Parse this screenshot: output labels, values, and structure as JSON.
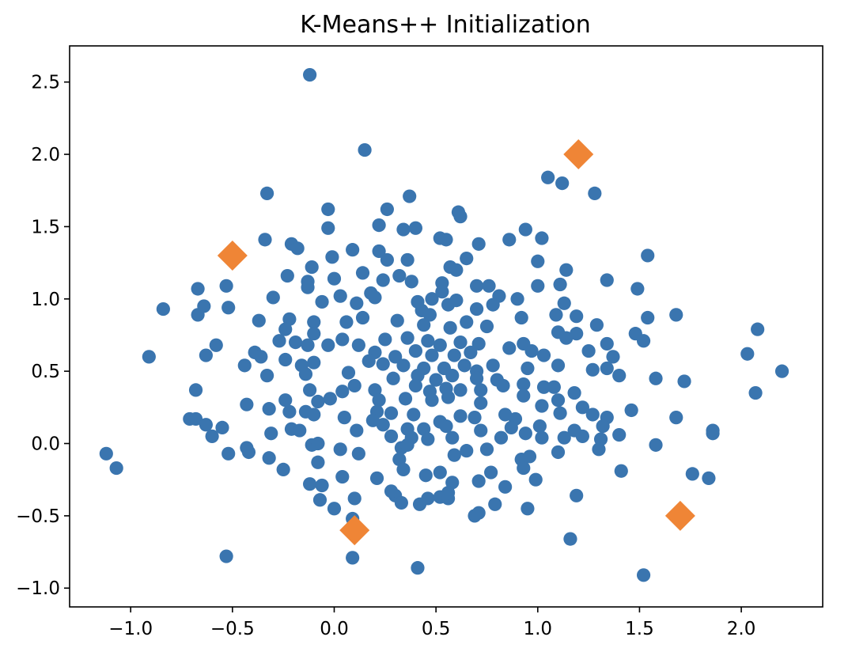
{
  "chart_data": {
    "type": "scatter",
    "title": "K-Means++ Initialization",
    "xlabel": "",
    "ylabel": "",
    "xlim": [
      -1.3,
      2.4
    ],
    "ylim": [
      -1.13,
      2.75
    ],
    "x_ticks": [
      -1.0,
      -0.5,
      0.0,
      0.5,
      1.0,
      1.5,
      2.0
    ],
    "x_tick_labels": [
      "−1.0",
      "−0.5",
      "0.0",
      "0.5",
      "1.0",
      "1.5",
      "2.0"
    ],
    "y_ticks": [
      -1.0,
      -0.5,
      0.0,
      0.5,
      1.0,
      1.5,
      2.0,
      2.5
    ],
    "y_tick_labels": [
      "−1.0",
      "−0.5",
      "0.0",
      "0.5",
      "1.0",
      "1.5",
      "2.0",
      "2.5"
    ],
    "grid": false,
    "colors": {
      "points": "#3a75af",
      "centroids": "#ef8536"
    },
    "series": [
      {
        "marker": "circle",
        "color": "#3a75af",
        "points": [
          [
            -0.12,
            2.55
          ],
          [
            0.15,
            2.03
          ],
          [
            -0.33,
            1.73
          ],
          [
            1.05,
            1.84
          ],
          [
            1.12,
            1.8
          ],
          [
            1.28,
            1.73
          ],
          [
            0.37,
            1.71
          ],
          [
            0.26,
            1.62
          ],
          [
            -0.03,
            1.62
          ],
          [
            0.61,
            1.6
          ],
          [
            0.62,
            1.57
          ],
          [
            0.22,
            1.51
          ],
          [
            0.4,
            1.49
          ],
          [
            0.34,
            1.48
          ],
          [
            -0.03,
            1.49
          ],
          [
            0.94,
            1.48
          ],
          [
            0.52,
            1.42
          ],
          [
            0.55,
            1.41
          ],
          [
            0.86,
            1.41
          ],
          [
            1.02,
            1.42
          ],
          [
            -0.34,
            1.41
          ],
          [
            -0.21,
            1.38
          ],
          [
            -0.18,
            1.35
          ],
          [
            0.71,
            1.38
          ],
          [
            1.54,
            1.3
          ],
          [
            -0.01,
            1.29
          ],
          [
            0.09,
            1.34
          ],
          [
            0.22,
            1.33
          ],
          [
            0.26,
            1.27
          ],
          [
            0.36,
            1.27
          ],
          [
            0.65,
            1.28
          ],
          [
            0.57,
            1.22
          ],
          [
            1.0,
            1.26
          ],
          [
            -0.11,
            1.22
          ],
          [
            0.6,
            1.2
          ],
          [
            1.14,
            1.2
          ],
          [
            0.14,
            1.18
          ],
          [
            0.32,
            1.16
          ],
          [
            -0.23,
            1.16
          ],
          [
            -0.13,
            1.12
          ],
          [
            0.53,
            1.11
          ],
          [
            -0.53,
            1.09
          ],
          [
            -0.67,
            1.07
          ],
          [
            -0.13,
            1.08
          ],
          [
            0.0,
            1.14
          ],
          [
            0.24,
            1.13
          ],
          [
            0.38,
            1.12
          ],
          [
            0.7,
            1.09
          ],
          [
            0.76,
            1.09
          ],
          [
            1.0,
            1.09
          ],
          [
            1.11,
            1.1
          ],
          [
            1.49,
            1.07
          ],
          [
            0.53,
            1.05
          ],
          [
            0.18,
            1.04
          ],
          [
            0.48,
            1.0
          ],
          [
            0.6,
            0.99
          ],
          [
            0.81,
            1.02
          ],
          [
            0.9,
            1.0
          ],
          [
            1.13,
            0.97
          ],
          [
            1.34,
            1.13
          ],
          [
            -0.3,
            1.01
          ],
          [
            -0.06,
            0.98
          ],
          [
            0.03,
            1.02
          ],
          [
            0.11,
            0.97
          ],
          [
            0.2,
            1.01
          ],
          [
            0.41,
            0.98
          ],
          [
            -0.52,
            0.94
          ],
          [
            -0.84,
            0.93
          ],
          [
            -0.64,
            0.95
          ],
          [
            -0.67,
            0.89
          ],
          [
            0.43,
            0.92
          ],
          [
            0.47,
            0.89
          ],
          [
            0.56,
            0.96
          ],
          [
            0.7,
            0.93
          ],
          [
            0.78,
            0.96
          ],
          [
            0.92,
            0.87
          ],
          [
            1.09,
            0.89
          ],
          [
            1.19,
            0.88
          ],
          [
            1.29,
            0.82
          ],
          [
            1.54,
            0.87
          ],
          [
            1.68,
            0.89
          ],
          [
            -0.37,
            0.85
          ],
          [
            -0.1,
            0.84
          ],
          [
            -0.22,
            0.86
          ],
          [
            0.06,
            0.84
          ],
          [
            0.14,
            0.87
          ],
          [
            0.31,
            0.85
          ],
          [
            0.44,
            0.82
          ],
          [
            0.57,
            0.8
          ],
          [
            0.65,
            0.84
          ],
          [
            0.75,
            0.81
          ],
          [
            1.1,
            0.77
          ],
          [
            1.19,
            0.76
          ],
          [
            1.14,
            0.73
          ],
          [
            1.48,
            0.76
          ],
          [
            1.52,
            0.71
          ],
          [
            2.08,
            0.79
          ],
          [
            -0.24,
            0.79
          ],
          [
            -0.1,
            0.76
          ],
          [
            0.04,
            0.72
          ],
          [
            0.12,
            0.68
          ],
          [
            0.25,
            0.72
          ],
          [
            0.36,
            0.73
          ],
          [
            0.46,
            0.71
          ],
          [
            0.52,
            0.68
          ],
          [
            0.62,
            0.7
          ],
          [
            0.71,
            0.69
          ],
          [
            0.86,
            0.66
          ],
          [
            0.93,
            0.69
          ],
          [
            1.34,
            0.69
          ],
          [
            -0.27,
            0.71
          ],
          [
            -0.19,
            0.7
          ],
          [
            -0.13,
            0.68
          ],
          [
            -0.03,
            0.68
          ],
          [
            0.2,
            0.63
          ],
          [
            0.3,
            0.6
          ],
          [
            0.4,
            0.64
          ],
          [
            0.48,
            0.61
          ],
          [
            0.59,
            0.61
          ],
          [
            0.67,
            0.63
          ],
          [
            0.97,
            0.64
          ],
          [
            1.03,
            0.61
          ],
          [
            1.25,
            0.64
          ],
          [
            1.37,
            0.6
          ],
          [
            2.03,
            0.62
          ],
          [
            -0.63,
            0.61
          ],
          [
            -0.58,
            0.68
          ],
          [
            -0.91,
            0.6
          ],
          [
            -0.39,
            0.63
          ],
          [
            -0.36,
            0.6
          ],
          [
            -0.44,
            0.54
          ],
          [
            -0.24,
            0.58
          ],
          [
            -0.16,
            0.54
          ],
          [
            -0.1,
            0.56
          ],
          [
            0.17,
            0.57
          ],
          [
            0.24,
            0.55
          ],
          [
            0.34,
            0.54
          ],
          [
            0.44,
            0.52
          ],
          [
            0.54,
            0.52
          ],
          [
            0.64,
            0.54
          ],
          [
            0.7,
            0.5
          ],
          [
            0.78,
            0.54
          ],
          [
            0.95,
            0.52
          ],
          [
            1.1,
            0.54
          ],
          [
            1.27,
            0.51
          ],
          [
            1.34,
            0.52
          ],
          [
            1.4,
            0.47
          ],
          [
            2.2,
            0.5
          ],
          [
            -0.33,
            0.47
          ],
          [
            -0.14,
            0.48
          ],
          [
            0.07,
            0.49
          ],
          [
            0.29,
            0.45
          ],
          [
            0.41,
            0.47
          ],
          [
            0.5,
            0.44
          ],
          [
            0.58,
            0.47
          ],
          [
            0.7,
            0.45
          ],
          [
            0.8,
            0.44
          ],
          [
            1.58,
            0.45
          ],
          [
            1.72,
            0.43
          ],
          [
            -0.68,
            0.37
          ],
          [
            -0.12,
            0.37
          ],
          [
            0.04,
            0.36
          ],
          [
            0.1,
            0.4
          ],
          [
            0.2,
            0.37
          ],
          [
            0.4,
            0.4
          ],
          [
            0.47,
            0.36
          ],
          [
            0.55,
            0.38
          ],
          [
            0.62,
            0.37
          ],
          [
            0.72,
            0.37
          ],
          [
            0.83,
            0.4
          ],
          [
            0.93,
            0.41
          ],
          [
            1.03,
            0.39
          ],
          [
            1.08,
            0.39
          ],
          [
            1.18,
            0.35
          ],
          [
            2.07,
            0.35
          ],
          [
            -0.02,
            0.31
          ],
          [
            -0.08,
            0.29
          ],
          [
            -0.24,
            0.3
          ],
          [
            0.22,
            0.3
          ],
          [
            0.35,
            0.31
          ],
          [
            0.48,
            0.3
          ],
          [
            0.56,
            0.32
          ],
          [
            0.72,
            0.28
          ],
          [
            0.93,
            0.33
          ],
          [
            1.1,
            0.3
          ],
          [
            1.02,
            0.26
          ],
          [
            -0.43,
            0.27
          ],
          [
            -0.32,
            0.24
          ],
          [
            -0.22,
            0.22
          ],
          [
            -0.14,
            0.22
          ],
          [
            -0.1,
            0.2
          ],
          [
            0.05,
            0.18
          ],
          [
            0.21,
            0.22
          ],
          [
            0.28,
            0.21
          ],
          [
            0.39,
            0.2
          ],
          [
            0.52,
            0.15
          ],
          [
            0.62,
            0.19
          ],
          [
            0.69,
            0.18
          ],
          [
            0.84,
            0.2
          ],
          [
            0.89,
            0.17
          ],
          [
            1.11,
            0.21
          ],
          [
            1.22,
            0.25
          ],
          [
            1.27,
            0.2
          ],
          [
            1.34,
            0.18
          ],
          [
            1.46,
            0.23
          ],
          [
            1.68,
            0.18
          ],
          [
            -0.71,
            0.17
          ],
          [
            -0.68,
            0.17
          ],
          [
            -0.63,
            0.13
          ],
          [
            -0.55,
            0.11
          ],
          [
            -0.21,
            0.1
          ],
          [
            0.11,
            0.09
          ],
          [
            0.19,
            0.16
          ],
          [
            0.24,
            0.13
          ],
          [
            0.36,
            0.1
          ],
          [
            0.44,
            0.1
          ],
          [
            0.55,
            0.12
          ],
          [
            0.72,
            0.09
          ],
          [
            0.87,
            0.11
          ],
          [
            1.01,
            0.12
          ],
          [
            1.18,
            0.09
          ],
          [
            1.32,
            0.12
          ],
          [
            1.86,
            0.09
          ],
          [
            -0.6,
            0.05
          ],
          [
            -0.31,
            0.07
          ],
          [
            -0.17,
            0.09
          ],
          [
            0.28,
            0.05
          ],
          [
            0.38,
            0.04
          ],
          [
            0.46,
            0.03
          ],
          [
            0.58,
            0.04
          ],
          [
            0.82,
            0.04
          ],
          [
            0.94,
            0.07
          ],
          [
            1.02,
            0.04
          ],
          [
            1.13,
            0.04
          ],
          [
            1.22,
            0.05
          ],
          [
            1.31,
            0.03
          ],
          [
            1.4,
            0.06
          ],
          [
            1.86,
            0.07
          ],
          [
            -0.43,
            -0.03
          ],
          [
            -0.11,
            -0.01
          ],
          [
            -0.08,
            0.0
          ],
          [
            0.03,
            -0.04
          ],
          [
            0.12,
            -0.07
          ],
          [
            0.33,
            -0.03
          ],
          [
            0.36,
            -0.01
          ],
          [
            0.65,
            -0.05
          ],
          [
            0.75,
            -0.04
          ],
          [
            1.1,
            -0.06
          ],
          [
            1.3,
            -0.04
          ],
          [
            1.58,
            -0.01
          ],
          [
            -1.12,
            -0.07
          ],
          [
            -1.07,
            -0.17
          ],
          [
            -0.52,
            -0.07
          ],
          [
            -0.42,
            -0.06
          ],
          [
            -0.32,
            -0.1
          ],
          [
            -0.08,
            -0.13
          ],
          [
            0.32,
            -0.11
          ],
          [
            0.59,
            -0.08
          ],
          [
            0.92,
            -0.11
          ],
          [
            0.96,
            -0.09
          ],
          [
            0.93,
            -0.17
          ],
          [
            -0.25,
            -0.18
          ],
          [
            0.21,
            -0.24
          ],
          [
            0.34,
            -0.18
          ],
          [
            0.45,
            -0.22
          ],
          [
            0.52,
            -0.2
          ],
          [
            0.58,
            -0.27
          ],
          [
            0.71,
            -0.26
          ],
          [
            0.77,
            -0.2
          ],
          [
            0.84,
            -0.3
          ],
          [
            0.99,
            -0.25
          ],
          [
            1.16,
            -0.66
          ],
          [
            1.19,
            -0.36
          ],
          [
            1.41,
            -0.19
          ],
          [
            1.76,
            -0.21
          ],
          [
            1.84,
            -0.24
          ],
          [
            -0.12,
            -0.28
          ],
          [
            -0.06,
            -0.29
          ],
          [
            0.04,
            -0.23
          ],
          [
            0.1,
            -0.38
          ],
          [
            0.3,
            -0.36
          ],
          [
            0.28,
            -0.33
          ],
          [
            0.33,
            -0.41
          ],
          [
            0.46,
            -0.38
          ],
          [
            0.52,
            -0.37
          ],
          [
            0.56,
            -0.38
          ],
          [
            0.71,
            -0.48
          ],
          [
            0.69,
            -0.5
          ],
          [
            0.79,
            -0.42
          ],
          [
            0.95,
            -0.45
          ],
          [
            -0.07,
            -0.39
          ],
          [
            0.0,
            -0.45
          ],
          [
            0.09,
            -0.52
          ],
          [
            0.42,
            -0.42
          ],
          [
            0.56,
            -0.34
          ],
          [
            -0.53,
            -0.78
          ],
          [
            0.09,
            -0.79
          ],
          [
            0.41,
            -0.86
          ],
          [
            1.52,
            -0.91
          ]
        ]
      },
      {
        "marker": "diamond",
        "color": "#ef8536",
        "points": [
          [
            1.2,
            2.0
          ],
          [
            -0.5,
            1.3
          ],
          [
            0.1,
            -0.6
          ],
          [
            1.7,
            -0.5
          ]
        ]
      }
    ]
  }
}
